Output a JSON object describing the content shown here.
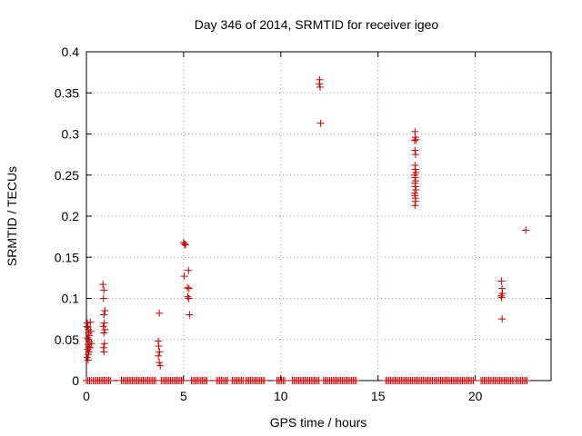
{
  "chart_data": {
    "type": "scatter",
    "title": "Day 346 of 2014, SRMTID for receiver igeo",
    "xlabel": "GPS time / hours",
    "ylabel": "SRMTID / TECUs",
    "xlim": [
      0,
      23.9
    ],
    "ylim": [
      0,
      0.4
    ],
    "xticks": [
      0,
      5,
      10,
      15,
      20
    ],
    "yticks": [
      0,
      0.05,
      0.1,
      0.15,
      0.2,
      0.25,
      0.3,
      0.35,
      0.4
    ],
    "xtick_labels": [
      "0",
      "5",
      "10",
      "15",
      "20"
    ],
    "ytick_labels": [
      "0",
      "0.05",
      "0.1",
      "0.15",
      "0.2",
      "0.25",
      "0.3",
      "0.35",
      "0.4"
    ],
    "grid": true,
    "marker": "+",
    "series": [
      {
        "name": "SRMTID",
        "color": "#cc0000",
        "points": [
          [
            0.05,
            0.07
          ],
          [
            0.08,
            0.065
          ],
          [
            0.1,
            0.062
          ],
          [
            0.12,
            0.058
          ],
          [
            0.14,
            0.055
          ],
          [
            0.06,
            0.052
          ],
          [
            0.1,
            0.05
          ],
          [
            0.15,
            0.047
          ],
          [
            0.08,
            0.044
          ],
          [
            0.12,
            0.041
          ],
          [
            0.07,
            0.038
          ],
          [
            0.13,
            0.035
          ],
          [
            0.1,
            0.032
          ],
          [
            0.05,
            0.028
          ],
          [
            0.09,
            0.025
          ],
          [
            0.2,
            0.071
          ],
          [
            0.22,
            0.06
          ],
          [
            0.25,
            0.045
          ],
          [
            0.18,
            0.04
          ],
          [
            0.04,
            0.066
          ],
          [
            0.85,
            0.117
          ],
          [
            0.9,
            0.11
          ],
          [
            0.88,
            0.1
          ],
          [
            0.95,
            0.085
          ],
          [
            0.9,
            0.08
          ],
          [
            0.92,
            0.07
          ],
          [
            0.87,
            0.066
          ],
          [
            0.95,
            0.062
          ],
          [
            0.9,
            0.058
          ],
          [
            0.93,
            0.045
          ],
          [
            0.88,
            0.04
          ],
          [
            0.9,
            0.035
          ],
          [
            3.75,
            0.082
          ],
          [
            3.7,
            0.048
          ],
          [
            3.72,
            0.042
          ],
          [
            3.76,
            0.035
          ],
          [
            3.7,
            0.03
          ],
          [
            3.75,
            0.022
          ],
          [
            3.8,
            0.018
          ],
          [
            5.0,
            0.168
          ],
          [
            5.05,
            0.166
          ],
          [
            5.1,
            0.165
          ],
          [
            5.03,
            0.127
          ],
          [
            5.25,
            0.134
          ],
          [
            5.2,
            0.113
          ],
          [
            5.28,
            0.112
          ],
          [
            5.22,
            0.102
          ],
          [
            5.27,
            0.1
          ],
          [
            5.3,
            0.08
          ],
          [
            12.0,
            0.366
          ],
          [
            11.98,
            0.361
          ],
          [
            12.02,
            0.357
          ],
          [
            12.05,
            0.313
          ],
          [
            16.9,
            0.303
          ],
          [
            16.92,
            0.296
          ],
          [
            16.95,
            0.293
          ],
          [
            16.88,
            0.292
          ],
          [
            16.9,
            0.28
          ],
          [
            16.93,
            0.275
          ],
          [
            16.9,
            0.262
          ],
          [
            16.92,
            0.257
          ],
          [
            16.95,
            0.253
          ],
          [
            16.88,
            0.25
          ],
          [
            16.9,
            0.247
          ],
          [
            16.93,
            0.243
          ],
          [
            16.9,
            0.24
          ],
          [
            16.92,
            0.236
          ],
          [
            16.95,
            0.232
          ],
          [
            16.88,
            0.228
          ],
          [
            16.9,
            0.225
          ],
          [
            16.92,
            0.222
          ],
          [
            16.93,
            0.218
          ],
          [
            16.9,
            0.213
          ],
          [
            21.35,
            0.121
          ],
          [
            21.38,
            0.112
          ],
          [
            21.4,
            0.106
          ],
          [
            21.33,
            0.103
          ],
          [
            21.36,
            0.101
          ],
          [
            21.38,
            0.075
          ],
          [
            22.6,
            0.183
          ]
        ],
        "zero_ranges": [
          [
            0.0,
            0.3
          ],
          [
            0.35,
            1.3
          ],
          [
            1.8,
            3.6
          ],
          [
            3.85,
            5.0
          ],
          [
            5.4,
            6.2
          ],
          [
            6.7,
            7.3
          ],
          [
            7.5,
            8.1
          ],
          [
            8.2,
            9.2
          ],
          [
            9.8,
            10.2
          ],
          [
            10.6,
            12.0
          ],
          [
            12.2,
            13.9
          ],
          [
            15.4,
            17.8
          ],
          [
            17.9,
            19.9
          ],
          [
            20.3,
            22.0
          ],
          [
            22.1,
            22.7
          ]
        ]
      }
    ]
  }
}
